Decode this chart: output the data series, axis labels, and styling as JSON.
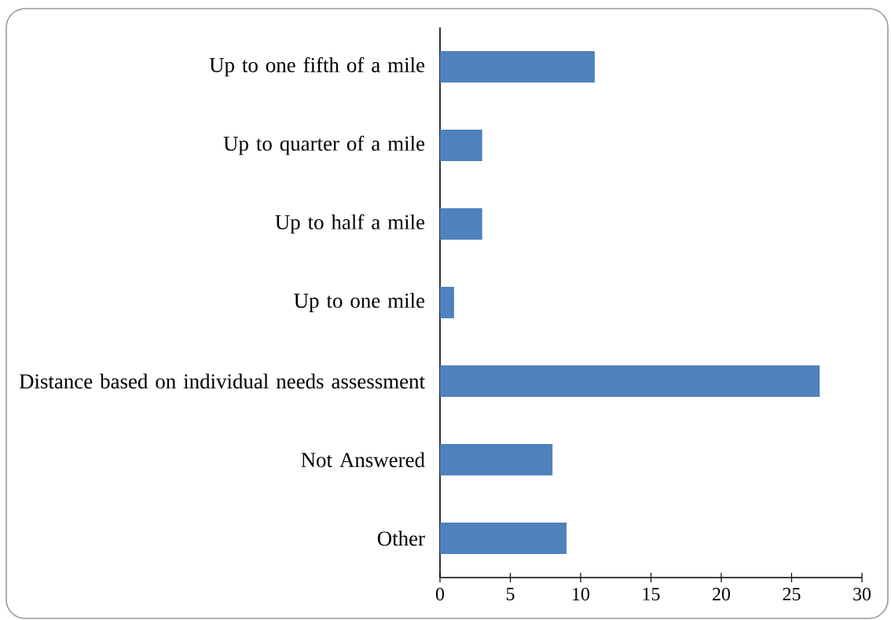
{
  "chart_data": {
    "type": "bar",
    "orientation": "horizontal",
    "categories": [
      "Up to one fifth of a mile",
      "Up to quarter of a mile",
      "Up to half a mile",
      "Up to one mile",
      "Distance based on individual needs assessment",
      "Not Answered",
      "Other"
    ],
    "values": [
      11,
      3,
      3,
      1,
      27,
      8,
      9
    ],
    "color": "#4f81bd",
    "xlim": [
      0,
      30
    ],
    "xticks": [
      0,
      5,
      10,
      15,
      20,
      25,
      30
    ]
  }
}
